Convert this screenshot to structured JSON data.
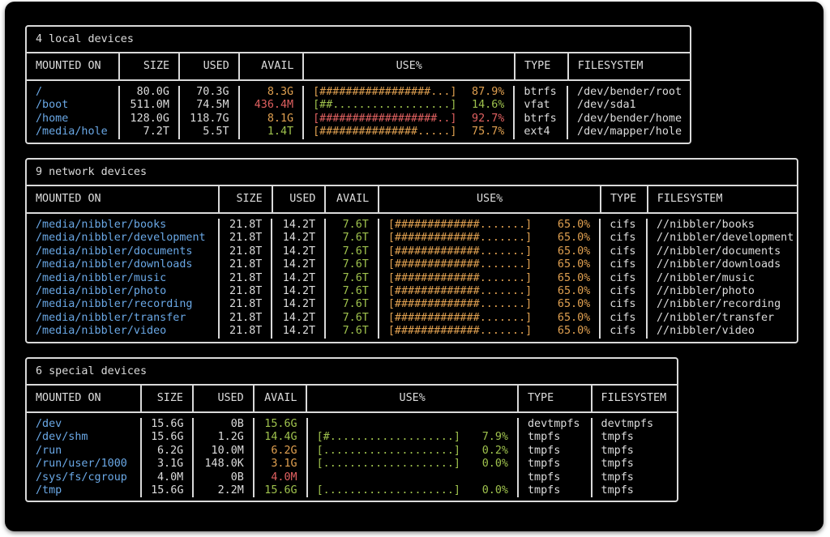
{
  "colors": {
    "background": "#000000",
    "border": "#d9d9d9",
    "text": "#dcdcdc",
    "mount": "#6aa8e6",
    "ok": "#9fc24d",
    "warn": "#e0a050",
    "crit": "#e06060"
  },
  "headers": {
    "mounted_on": "MOUNTED ON",
    "size": "SIZE",
    "used": "USED",
    "avail": "AVAIL",
    "use_pct": "USE%",
    "type": "TYPE",
    "filesystem": "FILESYSTEM"
  },
  "local": {
    "title": "4 local devices",
    "rows": [
      {
        "mount": "/",
        "size": "80.0G",
        "used": "70.3G",
        "avail": "8.3G",
        "avail_level": "warn",
        "bar": "[#################...]",
        "pct": "87.9%",
        "pct_level": "warn",
        "type": "btrfs",
        "fs": "/dev/bender/root"
      },
      {
        "mount": "/boot",
        "size": "511.0M",
        "used": "74.5M",
        "avail": "436.4M",
        "avail_level": "crit",
        "bar": "[##..................]",
        "pct": "14.6%",
        "pct_level": "ok",
        "type": "vfat",
        "fs": "/dev/sda1"
      },
      {
        "mount": "/home",
        "size": "128.0G",
        "used": "118.7G",
        "avail": "8.1G",
        "avail_level": "warn",
        "bar": "[##################..]",
        "pct": "92.7%",
        "pct_level": "crit",
        "type": "btrfs",
        "fs": "/dev/bender/home"
      },
      {
        "mount": "/media/hole",
        "size": "7.2T",
        "used": "5.5T",
        "avail": "1.4T",
        "avail_level": "ok",
        "bar": "[###############.....]",
        "pct": "75.7%",
        "pct_level": "warn",
        "type": "ext4",
        "fs": "/dev/mapper/hole"
      }
    ]
  },
  "network": {
    "title": "9 network devices",
    "rows": [
      {
        "mount": "/media/nibbler/books",
        "size": "21.8T",
        "used": "14.2T",
        "avail": "7.6T",
        "avail_level": "ok",
        "bar": "[#############.......]",
        "pct": "65.0%",
        "pct_level": "warn",
        "type": "cifs",
        "fs": "//nibbler/books"
      },
      {
        "mount": "/media/nibbler/development",
        "size": "21.8T",
        "used": "14.2T",
        "avail": "7.6T",
        "avail_level": "ok",
        "bar": "[#############.......]",
        "pct": "65.0%",
        "pct_level": "warn",
        "type": "cifs",
        "fs": "//nibbler/development"
      },
      {
        "mount": "/media/nibbler/documents",
        "size": "21.8T",
        "used": "14.2T",
        "avail": "7.6T",
        "avail_level": "ok",
        "bar": "[#############.......]",
        "pct": "65.0%",
        "pct_level": "warn",
        "type": "cifs",
        "fs": "//nibbler/documents"
      },
      {
        "mount": "/media/nibbler/downloads",
        "size": "21.8T",
        "used": "14.2T",
        "avail": "7.6T",
        "avail_level": "ok",
        "bar": "[#############.......]",
        "pct": "65.0%",
        "pct_level": "warn",
        "type": "cifs",
        "fs": "//nibbler/downloads"
      },
      {
        "mount": "/media/nibbler/music",
        "size": "21.8T",
        "used": "14.2T",
        "avail": "7.6T",
        "avail_level": "ok",
        "bar": "[#############.......]",
        "pct": "65.0%",
        "pct_level": "warn",
        "type": "cifs",
        "fs": "//nibbler/music"
      },
      {
        "mount": "/media/nibbler/photo",
        "size": "21.8T",
        "used": "14.2T",
        "avail": "7.6T",
        "avail_level": "ok",
        "bar": "[#############.......]",
        "pct": "65.0%",
        "pct_level": "warn",
        "type": "cifs",
        "fs": "//nibbler/photo"
      },
      {
        "mount": "/media/nibbler/recording",
        "size": "21.8T",
        "used": "14.2T",
        "avail": "7.6T",
        "avail_level": "ok",
        "bar": "[#############.......]",
        "pct": "65.0%",
        "pct_level": "warn",
        "type": "cifs",
        "fs": "//nibbler/recording"
      },
      {
        "mount": "/media/nibbler/transfer",
        "size": "21.8T",
        "used": "14.2T",
        "avail": "7.6T",
        "avail_level": "ok",
        "bar": "[#############.......]",
        "pct": "65.0%",
        "pct_level": "warn",
        "type": "cifs",
        "fs": "//nibbler/transfer"
      },
      {
        "mount": "/media/nibbler/video",
        "size": "21.8T",
        "used": "14.2T",
        "avail": "7.6T",
        "avail_level": "ok",
        "bar": "[#############.......]",
        "pct": "65.0%",
        "pct_level": "warn",
        "type": "cifs",
        "fs": "//nibbler/video"
      }
    ]
  },
  "special": {
    "title": "6 special devices",
    "rows": [
      {
        "mount": "/dev",
        "size": "15.6G",
        "used": "0B",
        "avail": "15.6G",
        "avail_level": "ok",
        "bar": "",
        "pct": "",
        "pct_level": "ok",
        "type": "devtmpfs",
        "fs": "devtmpfs"
      },
      {
        "mount": "/dev/shm",
        "size": "15.6G",
        "used": "1.2G",
        "avail": "14.4G",
        "avail_level": "ok",
        "bar": "[#...................]",
        "pct": "7.9%",
        "pct_level": "ok",
        "type": "tmpfs",
        "fs": "tmpfs"
      },
      {
        "mount": "/run",
        "size": "6.2G",
        "used": "10.0M",
        "avail": "6.2G",
        "avail_level": "warn",
        "bar": "[....................]",
        "pct": "0.2%",
        "pct_level": "ok",
        "type": "tmpfs",
        "fs": "tmpfs"
      },
      {
        "mount": "/run/user/1000",
        "size": "3.1G",
        "used": "148.0K",
        "avail": "3.1G",
        "avail_level": "warn",
        "bar": "[....................]",
        "pct": "0.0%",
        "pct_level": "ok",
        "type": "tmpfs",
        "fs": "tmpfs"
      },
      {
        "mount": "/sys/fs/cgroup",
        "size": "4.0M",
        "used": "0B",
        "avail": "4.0M",
        "avail_level": "crit",
        "bar": "",
        "pct": "",
        "pct_level": "ok",
        "type": "tmpfs",
        "fs": "tmpfs"
      },
      {
        "mount": "/tmp",
        "size": "15.6G",
        "used": "2.2M",
        "avail": "15.6G",
        "avail_level": "ok",
        "bar": "[....................]",
        "pct": "0.0%",
        "pct_level": "ok",
        "type": "tmpfs",
        "fs": "tmpfs"
      }
    ]
  }
}
